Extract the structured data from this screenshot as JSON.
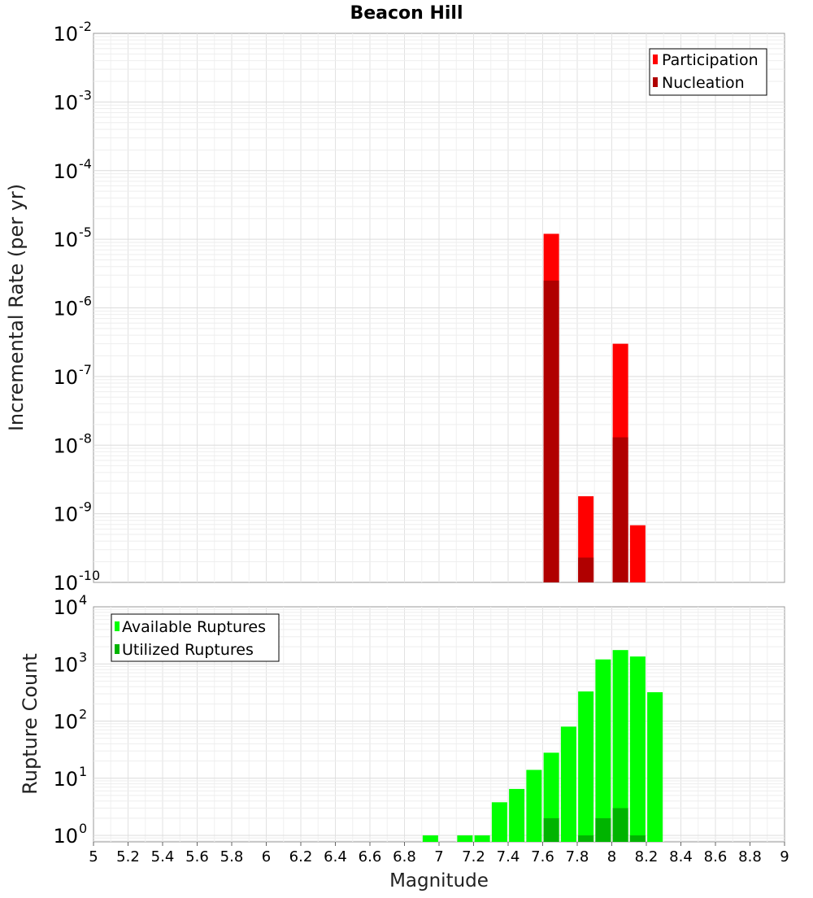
{
  "title": "Beacon Hill",
  "chart_data": [
    {
      "type": "bar",
      "ylabel": "Incremental Rate (per yr)",
      "xlabel": "",
      "ylog": true,
      "ylim": [
        1e-10,
        0.01
      ],
      "xlim": [
        5,
        9
      ],
      "y_ticks": [
        {
          "base": "10",
          "exp": "-2"
        },
        {
          "base": "10",
          "exp": "-3"
        },
        {
          "base": "10",
          "exp": "-4"
        },
        {
          "base": "10",
          "exp": "-5"
        },
        {
          "base": "10",
          "exp": "-6"
        },
        {
          "base": "10",
          "exp": "-7"
        },
        {
          "base": "10",
          "exp": "-8"
        },
        {
          "base": "10",
          "exp": "-9"
        },
        {
          "base": "10",
          "exp": "-10"
        }
      ],
      "legend_position": "top-right",
      "grid": true,
      "series": [
        {
          "name": "Participation",
          "color": "#ff0000",
          "x": [
            7.65,
            7.85,
            8.05,
            8.15
          ],
          "values": [
            1.2e-05,
            1.8e-09,
            3e-07,
            6.8e-10
          ]
        },
        {
          "name": "Nucleation",
          "color": "#b00000",
          "x": [
            7.65,
            7.85,
            8.05
          ],
          "values": [
            2.5e-06,
            2.3e-10,
            1.3e-08
          ]
        }
      ]
    },
    {
      "type": "bar",
      "ylabel": "Rupture Count",
      "xlabel": "Magnitude",
      "ylog": true,
      "ylim": [
        0.77,
        10000
      ],
      "xlim": [
        5,
        9
      ],
      "x_tick_labels": [
        "5",
        "5.2",
        "5.4",
        "5.6",
        "5.8",
        "6",
        "6.2",
        "6.4",
        "6.6",
        "6.8",
        "7",
        "7.2",
        "7.4",
        "7.6",
        "7.8",
        "8",
        "8.2",
        "8.4",
        "8.6",
        "8.8",
        "9"
      ],
      "y_ticks": [
        {
          "base": "10",
          "exp": "0"
        },
        {
          "base": "10",
          "exp": "1"
        },
        {
          "base": "10",
          "exp": "2"
        },
        {
          "base": "10",
          "exp": "3"
        },
        {
          "base": "10",
          "exp": "4"
        }
      ],
      "legend_position": "top-left",
      "grid": true,
      "series": [
        {
          "name": "Available Ruptures",
          "color": "#00ff00",
          "x": [
            6.95,
            7.15,
            7.25,
            7.35,
            7.45,
            7.55,
            7.65,
            7.75,
            7.85,
            7.95,
            8.05,
            8.15,
            8.25
          ],
          "values": [
            1,
            1,
            1,
            3.8,
            6.5,
            14,
            28,
            80,
            330,
            1200,
            1750,
            1350,
            320
          ]
        },
        {
          "name": "Utilized Ruptures",
          "color": "#00b400",
          "x": [
            7.65,
            7.85,
            7.95,
            8.05,
            8.15
          ],
          "values": [
            2,
            1,
            2,
            3,
            1
          ]
        }
      ]
    }
  ]
}
